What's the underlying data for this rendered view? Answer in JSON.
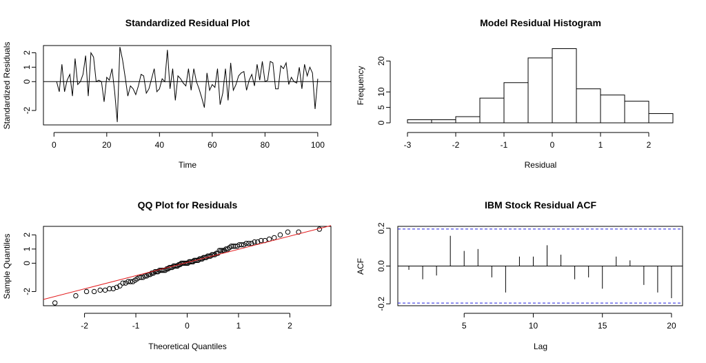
{
  "chart_data": [
    {
      "type": "line",
      "title": "Standardized Residual Plot",
      "xlabel": "Time",
      "ylabel": "Standardized Residuals",
      "xlim": [
        -4,
        105
      ],
      "ylim": [
        -3.0,
        2.5
      ],
      "xticks": [
        0,
        20,
        40,
        60,
        80,
        100
      ],
      "yticks": [
        -2,
        0,
        1,
        2
      ],
      "hline": 0,
      "x": [
        1,
        2,
        3,
        4,
        5,
        6,
        7,
        8,
        9,
        10,
        11,
        12,
        13,
        14,
        15,
        16,
        17,
        18,
        19,
        20,
        21,
        22,
        23,
        24,
        25,
        26,
        27,
        28,
        29,
        30,
        31,
        32,
        33,
        34,
        35,
        36,
        37,
        38,
        39,
        40,
        41,
        42,
        43,
        44,
        45,
        46,
        47,
        48,
        49,
        50,
        51,
        52,
        53,
        54,
        55,
        56,
        57,
        58,
        59,
        60,
        61,
        62,
        63,
        64,
        65,
        66,
        67,
        68,
        69,
        70,
        71,
        72,
        73,
        74,
        75,
        76,
        77,
        78,
        79,
        80,
        81,
        82,
        83,
        84,
        85,
        86,
        87,
        88,
        89,
        90,
        91,
        92,
        93,
        94,
        95,
        96,
        97,
        98,
        99,
        100
      ],
      "values": [
        0.0,
        -0.7,
        1.2,
        -0.7,
        0.1,
        0.5,
        -1.0,
        1.6,
        -0.2,
        0.0,
        0.5,
        1.8,
        -1.0,
        2.0,
        1.7,
        0.0,
        0.1,
        0.0,
        -1.4,
        0.3,
        0.1,
        0.9,
        -0.7,
        -2.8,
        2.4,
        1.5,
        0.3,
        -1.0,
        -0.3,
        -0.5,
        -0.9,
        -0.3,
        0.5,
        0.4,
        -0.8,
        -0.5,
        0.2,
        0.9,
        -0.7,
        -0.5,
        0.2,
        0.0,
        2.2,
        -0.5,
        0.9,
        -1.3,
        0.4,
        0.2,
        -0.1,
        -0.3,
        0.9,
        -0.6,
        0.9,
        0.0,
        -0.5,
        -1.1,
        -1.8,
        0.6,
        -0.6,
        -0.2,
        -0.4,
        0.9,
        -1.6,
        -0.8,
        0.9,
        -1.3,
        1.3,
        -0.6,
        -0.2,
        0.4,
        0.6,
        0.7,
        -0.6,
        0.1,
        0.5,
        -0.3,
        1.2,
        0.1,
        1.4,
        0.0,
        0.1,
        1.4,
        1.3,
        -0.5,
        -0.5,
        1.1,
        0.9,
        1.3,
        -0.2,
        0.3,
        0.0,
        -0.1,
        1.0,
        -0.5,
        1.2,
        0.4,
        1.0,
        0.6,
        -1.9,
        0.2
      ]
    },
    {
      "type": "bar",
      "title": "Model Residual Histogram",
      "xlabel": "Residual",
      "ylabel": "Frequency",
      "bin_edges": [
        -3,
        -2.5,
        -2,
        -1.5,
        -1,
        -0.5,
        0,
        0.5,
        1,
        1.5,
        2,
        2.5
      ],
      "values": [
        1,
        1,
        2,
        8,
        13,
        21,
        24,
        11,
        9,
        7,
        3
      ],
      "xticks": [
        -3,
        -2,
        -1,
        0,
        1,
        2
      ],
      "yticks": [
        0,
        5,
        10,
        20
      ],
      "xlim": [
        -3.2,
        2.7
      ],
      "ylim": [
        0,
        25
      ]
    },
    {
      "type": "scatter",
      "title": "QQ Plot for Residuals",
      "xlabel": "Theoretical Quantiles",
      "ylabel": "Sample Quantiles",
      "xlim": [
        -2.8,
        2.8
      ],
      "ylim": [
        -3.0,
        2.6
      ],
      "xticks": [
        -2,
        -1,
        0,
        1,
        2
      ],
      "yticks": [
        -2,
        0,
        1,
        2
      ],
      "line_color": "#e31a1c",
      "ref_line": {
        "intercept": 0.05,
        "slope": 0.93
      },
      "n": 100,
      "sample_quantiles": [
        -2.8,
        -2.3,
        -2.0,
        -2.0,
        -1.9,
        -1.9,
        -1.8,
        -1.8,
        -1.7,
        -1.6,
        -1.4,
        -1.4,
        -1.3,
        -1.3,
        -1.3,
        -1.2,
        -1.1,
        -1.0,
        -1.0,
        -1.0,
        -0.9,
        -0.9,
        -0.8,
        -0.8,
        -0.7,
        -0.7,
        -0.6,
        -0.6,
        -0.6,
        -0.5,
        -0.5,
        -0.5,
        -0.5,
        -0.5,
        -0.4,
        -0.4,
        -0.3,
        -0.3,
        -0.3,
        -0.2,
        -0.2,
        -0.2,
        -0.2,
        -0.1,
        -0.1,
        0.0,
        0.0,
        0.0,
        0.0,
        0.0,
        0.0,
        0.1,
        0.1,
        0.1,
        0.1,
        0.2,
        0.2,
        0.2,
        0.2,
        0.3,
        0.3,
        0.3,
        0.4,
        0.4,
        0.4,
        0.5,
        0.5,
        0.5,
        0.6,
        0.6,
        0.6,
        0.7,
        0.7,
        0.9,
        0.9,
        0.9,
        0.9,
        1.0,
        1.0,
        1.1,
        1.2,
        1.2,
        1.2,
        1.2,
        1.3,
        1.3,
        1.3,
        1.4,
        1.4,
        1.4,
        1.5,
        1.5,
        1.6,
        1.6,
        1.7,
        1.8,
        2.0,
        2.2,
        2.2,
        2.4
      ]
    },
    {
      "type": "bar",
      "title": "IBM Stock Residual ACF",
      "xlabel": "Lag",
      "ylabel": "ACF",
      "lags": [
        1,
        2,
        3,
        4,
        5,
        6,
        7,
        8,
        9,
        10,
        11,
        12,
        13,
        14,
        15,
        16,
        17,
        18,
        19,
        20
      ],
      "values": [
        -0.02,
        -0.07,
        -0.05,
        0.16,
        0.08,
        0.09,
        -0.06,
        -0.14,
        0.05,
        0.05,
        0.11,
        0.06,
        -0.07,
        -0.06,
        -0.12,
        0.05,
        0.03,
        -0.1,
        -0.14,
        -0.17
      ],
      "conf_bound": 0.196,
      "conf_color": "#1f1fdd",
      "xlim": [
        0.2,
        20.8
      ],
      "ylim": [
        -0.21,
        0.21
      ],
      "xticks": [
        5,
        10,
        15,
        20
      ],
      "yticks": [
        -0.2,
        0.0,
        0.2
      ],
      "ytick_labels": [
        "-0.2",
        "0.0",
        "0.2"
      ]
    }
  ]
}
